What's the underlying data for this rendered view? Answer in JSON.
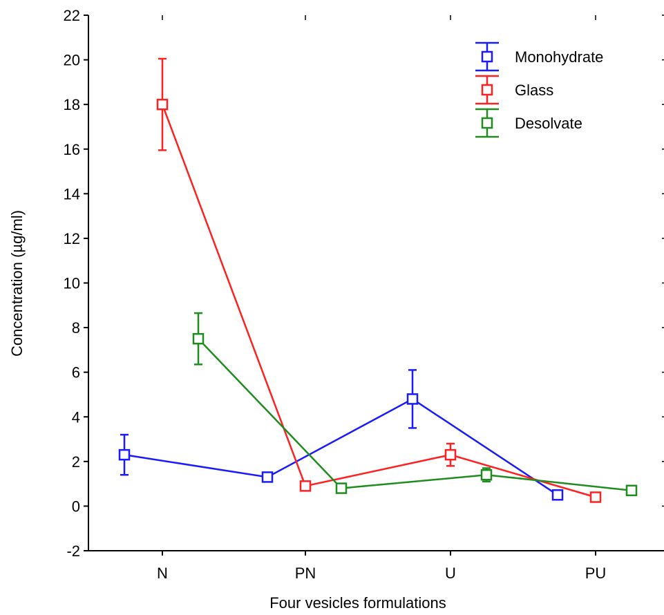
{
  "chart_data": {
    "type": "line",
    "title": "",
    "xlabel": "Four vesicles formulations",
    "ylabel": "Concentration (µg/ml)",
    "categories": [
      "N",
      "PN",
      "U",
      "PU"
    ],
    "ylim": [
      -2,
      22
    ],
    "yticks": [
      -2,
      0,
      2,
      4,
      6,
      8,
      10,
      12,
      14,
      16,
      18,
      20,
      22
    ],
    "grid": false,
    "legend_position": "top-right",
    "series": [
      {
        "name": "Monohydrate",
        "color": "#1a1aff",
        "values": [
          2.3,
          1.3,
          4.8,
          0.5
        ],
        "error": [
          0.9,
          0.1,
          1.3,
          0.1
        ]
      },
      {
        "name": "Glass",
        "color": "#ff2020",
        "values": [
          18.0,
          0.9,
          2.3,
          0.4
        ],
        "error": [
          2.05,
          0.1,
          0.5,
          0.1
        ]
      },
      {
        "name": "Desolvate",
        "color": "#1e8c1e",
        "values": [
          7.5,
          0.8,
          1.4,
          0.7
        ],
        "error": [
          1.15,
          0.1,
          0.3,
          0.1
        ]
      }
    ]
  }
}
